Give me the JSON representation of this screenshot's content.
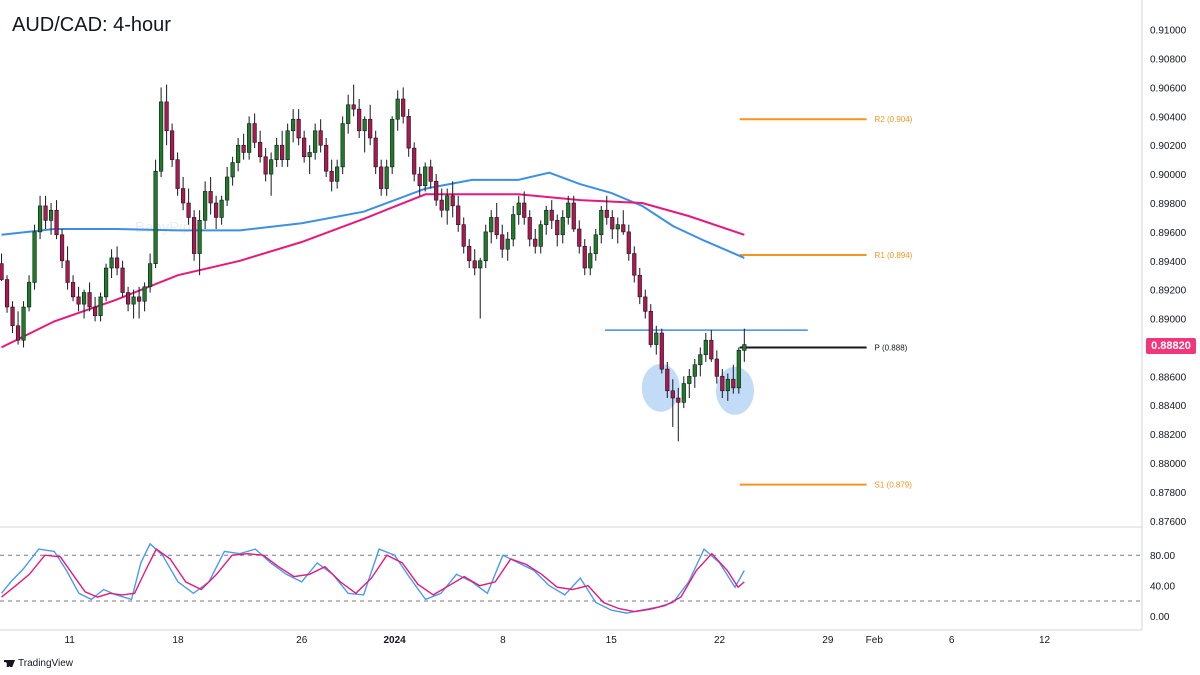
{
  "header": {
    "title": "AUD/CAD: 4-hour"
  },
  "brand": {
    "logo_text": "TradingView",
    "watermark": "BabyPips"
  },
  "current_price": "0.88820",
  "colors": {
    "bull": "#26a69a",
    "bull_body": "#1e7d24",
    "bear": "#b0174f",
    "ma_fast": "#3d8fe6",
    "ma_slow": "#e6197a",
    "pivot_levels": "#f7941d",
    "pivot_p": "#131722",
    "resistance": "#3d8fe6",
    "stoch_k": "#4a9bf0",
    "stoch_d": "#e6197a",
    "highlight": "#b7d5f5"
  },
  "chart_data": {
    "type": "candlestick",
    "symbol": "AUD/CAD",
    "timeframe": "4-hour",
    "y_ticks": [
      "0.91000",
      "0.90800",
      "0.90600",
      "0.90400",
      "0.90200",
      "0.90000",
      "0.89800",
      "0.89600",
      "0.89400",
      "0.89200",
      "0.89000",
      "0.88800",
      "0.88600",
      "0.88400",
      "0.88200",
      "0.88000",
      "0.87800",
      "0.87600"
    ],
    "ylim": [
      0.8755,
      0.9115
    ],
    "x_ticks": [
      {
        "label": "11",
        "day": 11
      },
      {
        "label": "18",
        "day": 18
      },
      {
        "label": "26",
        "day": 26
      },
      {
        "label": "2024",
        "day": 32
      },
      {
        "label": "8",
        "day": 39
      },
      {
        "label": "15",
        "day": 46
      },
      {
        "label": "22",
        "day": 53
      },
      {
        "label": "29",
        "day": 60
      },
      {
        "label": "Feb",
        "day": 63
      },
      {
        "label": "6",
        "day": 68
      },
      {
        "label": "12",
        "day": 74
      }
    ],
    "day_range": [
      6.5,
      80.3
    ],
    "candle_days": [
      6.6,
      54.6
    ],
    "pivots": [
      {
        "label": "R2 (0.904)",
        "value": 0.9038,
        "from_day": 54.3,
        "to_day": 62.5
      },
      {
        "label": "R1 (0.894)",
        "value": 0.8944,
        "from_day": 54.3,
        "to_day": 62.5
      },
      {
        "label": "P (0.888)",
        "value": 0.888,
        "from_day": 54.3,
        "to_day": 62.5
      },
      {
        "label": "S1 (0.879)",
        "value": 0.8785,
        "from_day": 54.3,
        "to_day": 62.5
      }
    ],
    "resistance": {
      "value": 0.8892,
      "from_day": 45.6,
      "to_day": 58.7
    },
    "double_bottom": [
      {
        "day": 49.2,
        "value": 0.8852
      },
      {
        "day": 54.0,
        "value": 0.885
      }
    ],
    "ma_fast_points": [
      [
        6.6,
        0.8958
      ],
      [
        10,
        0.8962
      ],
      [
        14,
        0.8962
      ],
      [
        18,
        0.8961
      ],
      [
        22,
        0.8961
      ],
      [
        26,
        0.8966
      ],
      [
        30,
        0.8974
      ],
      [
        34,
        0.899
      ],
      [
        37,
        0.8996
      ],
      [
        40,
        0.8996
      ],
      [
        42,
        0.9001
      ],
      [
        44,
        0.8993
      ],
      [
        46,
        0.8987
      ],
      [
        48,
        0.8978
      ],
      [
        50,
        0.8964
      ],
      [
        52,
        0.8954
      ],
      [
        54.6,
        0.8942
      ]
    ],
    "ma_slow_points": [
      [
        6.6,
        0.888
      ],
      [
        10,
        0.8898
      ],
      [
        14,
        0.8913
      ],
      [
        18,
        0.893
      ],
      [
        22,
        0.894
      ],
      [
        26,
        0.8953
      ],
      [
        30,
        0.8969
      ],
      [
        34,
        0.8986
      ],
      [
        37,
        0.8986
      ],
      [
        40,
        0.8986
      ],
      [
        44,
        0.8982
      ],
      [
        48,
        0.898
      ],
      [
        51,
        0.8971
      ],
      [
        54.6,
        0.8958
      ]
    ],
    "candles": [
      [
        0.8938,
        0.8945,
        0.8926,
        0.8927
      ],
      [
        0.8927,
        0.893,
        0.8904,
        0.8908
      ],
      [
        0.8908,
        0.8912,
        0.889,
        0.8895
      ],
      [
        0.8895,
        0.8905,
        0.8882,
        0.8885
      ],
      [
        0.8885,
        0.8912,
        0.888,
        0.8908
      ],
      [
        0.8908,
        0.893,
        0.8905,
        0.8925
      ],
      [
        0.8925,
        0.8965,
        0.892,
        0.896
      ],
      [
        0.896,
        0.8985,
        0.8955,
        0.8978
      ],
      [
        0.8978,
        0.8985,
        0.8962,
        0.8968
      ],
      [
        0.8968,
        0.898,
        0.8958,
        0.8975
      ],
      [
        0.8975,
        0.8982,
        0.8955,
        0.8958
      ],
      [
        0.8958,
        0.8962,
        0.8935,
        0.894
      ],
      [
        0.894,
        0.895,
        0.892,
        0.8925
      ],
      [
        0.8925,
        0.893,
        0.8912,
        0.8915
      ],
      [
        0.8915,
        0.8922,
        0.8905,
        0.891
      ],
      [
        0.891,
        0.892,
        0.89,
        0.8918
      ],
      [
        0.8918,
        0.8925,
        0.8905,
        0.8908
      ],
      [
        0.8908,
        0.8915,
        0.8898,
        0.8902
      ],
      [
        0.8902,
        0.8918,
        0.8898,
        0.8915
      ],
      [
        0.8915,
        0.8938,
        0.8912,
        0.8935
      ],
      [
        0.8935,
        0.8948,
        0.8928,
        0.8942
      ],
      [
        0.8942,
        0.895,
        0.893,
        0.8935
      ],
      [
        0.8935,
        0.894,
        0.8915,
        0.8918
      ],
      [
        0.8918,
        0.8922,
        0.8905,
        0.891
      ],
      [
        0.891,
        0.892,
        0.89,
        0.8915
      ],
      [
        0.8915,
        0.8922,
        0.89,
        0.8912
      ],
      [
        0.8912,
        0.8925,
        0.8905,
        0.8922
      ],
      [
        0.8922,
        0.8945,
        0.8918,
        0.8938
      ],
      [
        0.8938,
        0.901,
        0.8935,
        0.9002
      ],
      [
        0.9002,
        0.906,
        0.8998,
        0.905
      ],
      [
        0.905,
        0.9062,
        0.902,
        0.903
      ],
      [
        0.903,
        0.9035,
        0.9005,
        0.901
      ],
      [
        0.901,
        0.9015,
        0.8985,
        0.899
      ],
      [
        0.899,
        0.8998,
        0.8975,
        0.898
      ],
      [
        0.898,
        0.899,
        0.8965,
        0.897
      ],
      [
        0.897,
        0.8975,
        0.894,
        0.8945
      ],
      [
        0.8945,
        0.8975,
        0.893,
        0.8968
      ],
      [
        0.8968,
        0.8995,
        0.8962,
        0.8988
      ],
      [
        0.8988,
        0.8998,
        0.8972,
        0.898
      ],
      [
        0.898,
        0.8985,
        0.8962,
        0.897
      ],
      [
        0.897,
        0.8985,
        0.8965,
        0.8982
      ],
      [
        0.8982,
        0.9005,
        0.8978,
        0.8998
      ],
      [
        0.8998,
        0.9012,
        0.8992,
        0.9008
      ],
      [
        0.9008,
        0.9025,
        0.9002,
        0.902
      ],
      [
        0.902,
        0.9028,
        0.901,
        0.9015
      ],
      [
        0.9015,
        0.904,
        0.901,
        0.9035
      ],
      [
        0.9035,
        0.9042,
        0.9018,
        0.9022
      ],
      [
        0.9022,
        0.903,
        0.9008,
        0.9012
      ],
      [
        0.9012,
        0.9018,
        0.8995,
        0.9
      ],
      [
        0.9,
        0.9015,
        0.8985,
        0.901
      ],
      [
        0.901,
        0.9025,
        0.9005,
        0.902
      ],
      [
        0.902,
        0.903,
        0.9005,
        0.901
      ],
      [
        0.901,
        0.9035,
        0.9005,
        0.903
      ],
      [
        0.903,
        0.9045,
        0.9022,
        0.9038
      ],
      [
        0.9038,
        0.9045,
        0.902,
        0.9025
      ],
      [
        0.9025,
        0.903,
        0.9008,
        0.9012
      ],
      [
        0.9012,
        0.902,
        0.9,
        0.9015
      ],
      [
        0.9015,
        0.9035,
        0.901,
        0.903
      ],
      [
        0.903,
        0.9038,
        0.9015,
        0.902
      ],
      [
        0.902,
        0.9025,
        0.8998,
        0.9002
      ],
      [
        0.9002,
        0.901,
        0.8988,
        0.8995
      ],
      [
        0.8995,
        0.901,
        0.899,
        0.9005
      ],
      [
        0.9005,
        0.904,
        0.9,
        0.9035
      ],
      [
        0.9035,
        0.9055,
        0.9028,
        0.9048
      ],
      [
        0.9048,
        0.9062,
        0.904,
        0.9045
      ],
      [
        0.9045,
        0.9052,
        0.9025,
        0.903
      ],
      [
        0.903,
        0.904,
        0.9015,
        0.9038
      ],
      [
        0.9038,
        0.9048,
        0.902,
        0.9025
      ],
      [
        0.9025,
        0.903,
        0.9,
        0.9005
      ],
      [
        0.9005,
        0.901,
        0.8985,
        0.899
      ],
      [
        0.899,
        0.901,
        0.8985,
        0.9005
      ],
      [
        0.9005,
        0.904,
        0.9,
        0.9038
      ],
      [
        0.9038,
        0.9058,
        0.903,
        0.9052
      ],
      [
        0.9052,
        0.906,
        0.9035,
        0.904
      ],
      [
        0.904,
        0.9045,
        0.9012,
        0.9018
      ],
      [
        0.9018,
        0.9022,
        0.8995,
        0.9
      ],
      [
        0.9,
        0.9005,
        0.8985,
        0.8992
      ],
      [
        0.8992,
        0.9008,
        0.8988,
        0.9005
      ],
      [
        0.9005,
        0.901,
        0.899,
        0.8995
      ],
      [
        0.8995,
        0.9,
        0.8978,
        0.8982
      ],
      [
        0.8982,
        0.899,
        0.897,
        0.8975
      ],
      [
        0.8975,
        0.899,
        0.8965,
        0.8985
      ],
      [
        0.8985,
        0.8995,
        0.897,
        0.8978
      ],
      [
        0.8978,
        0.8985,
        0.896,
        0.8965
      ],
      [
        0.8965,
        0.897,
        0.8945,
        0.895
      ],
      [
        0.895,
        0.8955,
        0.8935,
        0.894
      ],
      [
        0.894,
        0.8948,
        0.893,
        0.8935
      ],
      [
        0.8935,
        0.8942,
        0.89,
        0.894
      ],
      [
        0.894,
        0.8965,
        0.8935,
        0.896
      ],
      [
        0.896,
        0.8975,
        0.8952,
        0.897
      ],
      [
        0.897,
        0.898,
        0.8955,
        0.8958
      ],
      [
        0.8958,
        0.8965,
        0.8942,
        0.8948
      ],
      [
        0.8948,
        0.896,
        0.894,
        0.8955
      ],
      [
        0.8955,
        0.8978,
        0.895,
        0.8972
      ],
      [
        0.8972,
        0.8985,
        0.8965,
        0.898
      ],
      [
        0.898,
        0.8988,
        0.8965,
        0.897
      ],
      [
        0.897,
        0.8975,
        0.895,
        0.8955
      ],
      [
        0.8955,
        0.8962,
        0.8945,
        0.895
      ],
      [
        0.895,
        0.8968,
        0.8945,
        0.8965
      ],
      [
        0.8965,
        0.8978,
        0.8958,
        0.8975
      ],
      [
        0.8975,
        0.8982,
        0.8962,
        0.8968
      ],
      [
        0.8968,
        0.8972,
        0.895,
        0.8958
      ],
      [
        0.8958,
        0.8975,
        0.8952,
        0.897
      ],
      [
        0.897,
        0.8985,
        0.8965,
        0.898
      ],
      [
        0.898,
        0.8985,
        0.896,
        0.8962
      ],
      [
        0.8962,
        0.8968,
        0.8945,
        0.895
      ],
      [
        0.895,
        0.8955,
        0.893,
        0.8935
      ],
      [
        0.8935,
        0.895,
        0.893,
        0.8945
      ],
      [
        0.8945,
        0.8962,
        0.894,
        0.8958
      ],
      [
        0.8958,
        0.8978,
        0.8952,
        0.8975
      ],
      [
        0.8975,
        0.8985,
        0.8965,
        0.897
      ],
      [
        0.897,
        0.8975,
        0.8955,
        0.8962
      ],
      [
        0.8962,
        0.897,
        0.8952,
        0.8965
      ],
      [
        0.8965,
        0.8975,
        0.8958,
        0.896
      ],
      [
        0.896,
        0.8965,
        0.894,
        0.8945
      ],
      [
        0.8945,
        0.895,
        0.8925,
        0.893
      ],
      [
        0.893,
        0.8935,
        0.891,
        0.8915
      ],
      [
        0.8915,
        0.892,
        0.89,
        0.8905
      ],
      [
        0.8905,
        0.891,
        0.888,
        0.8882
      ],
      [
        0.8882,
        0.8895,
        0.8875,
        0.889
      ],
      [
        0.889,
        0.8893,
        0.8862,
        0.8865
      ],
      [
        0.8865,
        0.887,
        0.8845,
        0.885
      ],
      [
        0.885,
        0.8858,
        0.8825,
        0.8845
      ],
      [
        0.8845,
        0.8852,
        0.8815,
        0.8842
      ],
      [
        0.8842,
        0.886,
        0.8838,
        0.8855
      ],
      [
        0.8855,
        0.8865,
        0.8845,
        0.886
      ],
      [
        0.886,
        0.8872,
        0.8852,
        0.8868
      ],
      [
        0.8868,
        0.888,
        0.886,
        0.8875
      ],
      [
        0.8875,
        0.889,
        0.887,
        0.8885
      ],
      [
        0.8885,
        0.8892,
        0.887,
        0.8872
      ],
      [
        0.8872,
        0.8878,
        0.8855,
        0.886
      ],
      [
        0.886,
        0.8865,
        0.8845,
        0.885
      ],
      [
        0.885,
        0.8862,
        0.8843,
        0.8858
      ],
      [
        0.8858,
        0.8868,
        0.8848,
        0.8852
      ],
      [
        0.8852,
        0.888,
        0.8848,
        0.8878
      ],
      [
        0.8878,
        0.8893,
        0.887,
        0.8882
      ]
    ],
    "stochastic": {
      "levels": [
        "80.00",
        "40.00",
        "0.00"
      ],
      "ylim": [
        -5,
        100
      ],
      "dashed": [
        80,
        20
      ],
      "k_points": [
        [
          6.6,
          30
        ],
        [
          7.2,
          45
        ],
        [
          8,
          62
        ],
        [
          9,
          88
        ],
        [
          10,
          85
        ],
        [
          10.8,
          60
        ],
        [
          11.6,
          30
        ],
        [
          12.4,
          22
        ],
        [
          13.2,
          35
        ],
        [
          14,
          28
        ],
        [
          15,
          22
        ],
        [
          15.6,
          70
        ],
        [
          16.2,
          95
        ],
        [
          17,
          80
        ],
        [
          18,
          45
        ],
        [
          19,
          30
        ],
        [
          20,
          45
        ],
        [
          21,
          85
        ],
        [
          22,
          82
        ],
        [
          23,
          88
        ],
        [
          24,
          70
        ],
        [
          25,
          55
        ],
        [
          26,
          45
        ],
        [
          27,
          70
        ],
        [
          28,
          55
        ],
        [
          29,
          30
        ],
        [
          30,
          28
        ],
        [
          31,
          88
        ],
        [
          32,
          80
        ],
        [
          33,
          50
        ],
        [
          34,
          22
        ],
        [
          35,
          30
        ],
        [
          36,
          55
        ],
        [
          37,
          45
        ],
        [
          38,
          30
        ],
        [
          39,
          80
        ],
        [
          40,
          70
        ],
        [
          41,
          60
        ],
        [
          42,
          40
        ],
        [
          43,
          28
        ],
        [
          44,
          50
        ],
        [
          45,
          18
        ],
        [
          46,
          8
        ],
        [
          47,
          4
        ],
        [
          48,
          8
        ],
        [
          49,
          12
        ],
        [
          50,
          18
        ],
        [
          51,
          45
        ],
        [
          52,
          88
        ],
        [
          53,
          70
        ],
        [
          54,
          38
        ],
        [
          54.6,
          60
        ]
      ],
      "d_points": [
        [
          6.6,
          25
        ],
        [
          7.4,
          38
        ],
        [
          8.4,
          55
        ],
        [
          9.4,
          80
        ],
        [
          10.4,
          78
        ],
        [
          11.2,
          55
        ],
        [
          12,
          32
        ],
        [
          12.8,
          25
        ],
        [
          13.6,
          30
        ],
        [
          14.4,
          28
        ],
        [
          15.2,
          30
        ],
        [
          15.9,
          60
        ],
        [
          16.6,
          88
        ],
        [
          17.5,
          75
        ],
        [
          18.5,
          45
        ],
        [
          19.5,
          35
        ],
        [
          20.5,
          55
        ],
        [
          21.5,
          80
        ],
        [
          22.5,
          82
        ],
        [
          23.5,
          80
        ],
        [
          24.5,
          65
        ],
        [
          25.5,
          52
        ],
        [
          26.5,
          55
        ],
        [
          27.5,
          65
        ],
        [
          28.5,
          45
        ],
        [
          29.5,
          30
        ],
        [
          30.5,
          50
        ],
        [
          31.5,
          80
        ],
        [
          32.5,
          70
        ],
        [
          33.5,
          42
        ],
        [
          34.5,
          28
        ],
        [
          35.5,
          40
        ],
        [
          36.5,
          52
        ],
        [
          37.5,
          40
        ],
        [
          38.5,
          45
        ],
        [
          39.5,
          75
        ],
        [
          40.5,
          68
        ],
        [
          41.5,
          55
        ],
        [
          42.5,
          38
        ],
        [
          43.5,
          35
        ],
        [
          44.5,
          40
        ],
        [
          45.5,
          18
        ],
        [
          46.5,
          10
        ],
        [
          47.5,
          6
        ],
        [
          48.5,
          9
        ],
        [
          49.5,
          14
        ],
        [
          50.5,
          25
        ],
        [
          51.5,
          60
        ],
        [
          52.5,
          82
        ],
        [
          53.5,
          60
        ],
        [
          54.2,
          38
        ],
        [
          54.6,
          45
        ]
      ]
    }
  }
}
